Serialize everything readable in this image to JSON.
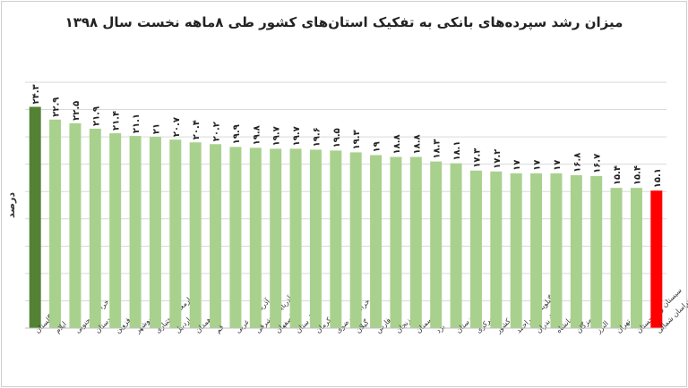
{
  "chart_data": {
    "type": "bar",
    "title": "میزان رشد سپرده‌های بانکی به تفکیک استان‌های کشور طی ۸ماهه نخست سال ۱۳۹۸",
    "ylabel": "درصد",
    "xlabel": "",
    "ylim": [
      0,
      27
    ],
    "grid": true,
    "categories": [
      "گلستان",
      "ایلام",
      "خراسان جنوبی",
      "کردستان",
      "قزوین",
      "بوشهر",
      "چهارمحال‌وبختیاری",
      "اردبیل",
      "همدان",
      "قم",
      "آذربایجان غربی",
      "آذربایجان شرقی",
      "اصفهان",
      "لرستان",
      "کرمان",
      "خراسان رضوی",
      "گیلان",
      "فارس",
      "زنجان",
      "سمنان",
      "یزد",
      "خوزستان",
      "مرکزی",
      "گل کشور",
      "کهگیلویه وبویراحمد",
      "مازندران",
      "کرمانشاه",
      "هرمزگان",
      "البرز",
      "تهران",
      "سیستان و بلوچستان",
      "خراسان شمالی"
    ],
    "values": [
      24.3,
      22.9,
      22.5,
      21.9,
      21.4,
      21.1,
      21,
      20.7,
      20.4,
      20.2,
      19.9,
      19.8,
      19.7,
      19.7,
      19.6,
      19.5,
      19.3,
      19,
      18.8,
      18.8,
      18.3,
      18.1,
      17.3,
      17.2,
      17,
      17,
      17,
      16.8,
      16.7,
      15.4,
      15.4,
      15.1
    ],
    "value_labels": [
      "۲۴.۳",
      "۲۲.۹",
      "۲۲.۵",
      "۲۱.۹",
      "۲۱.۴",
      "۲۱.۱",
      "۲۱",
      "۲۰.۷",
      "۲۰.۴",
      "۲۰.۲",
      "۱۹.۹",
      "۱۹.۸",
      "۱۹.۷",
      "۱۹.۷",
      "۱۹.۶",
      "۱۹.۵",
      "۱۹.۳",
      "۱۹",
      "۱۸.۸",
      "۱۸.۸",
      "۱۸.۳",
      "۱۸.۱",
      "۱۷.۳",
      "۱۷.۲",
      "۱۷",
      "۱۷",
      "۱۷",
      "۱۶.۸",
      "۱۶.۷",
      "۱۵.۴",
      "۱۵.۴",
      "۱۵.۱"
    ],
    "bar_colors": {
      "default": "#a9d18e",
      "highest": "#548235",
      "lowest": "#ff0000"
    },
    "grid_color": "#d9d9d9"
  }
}
